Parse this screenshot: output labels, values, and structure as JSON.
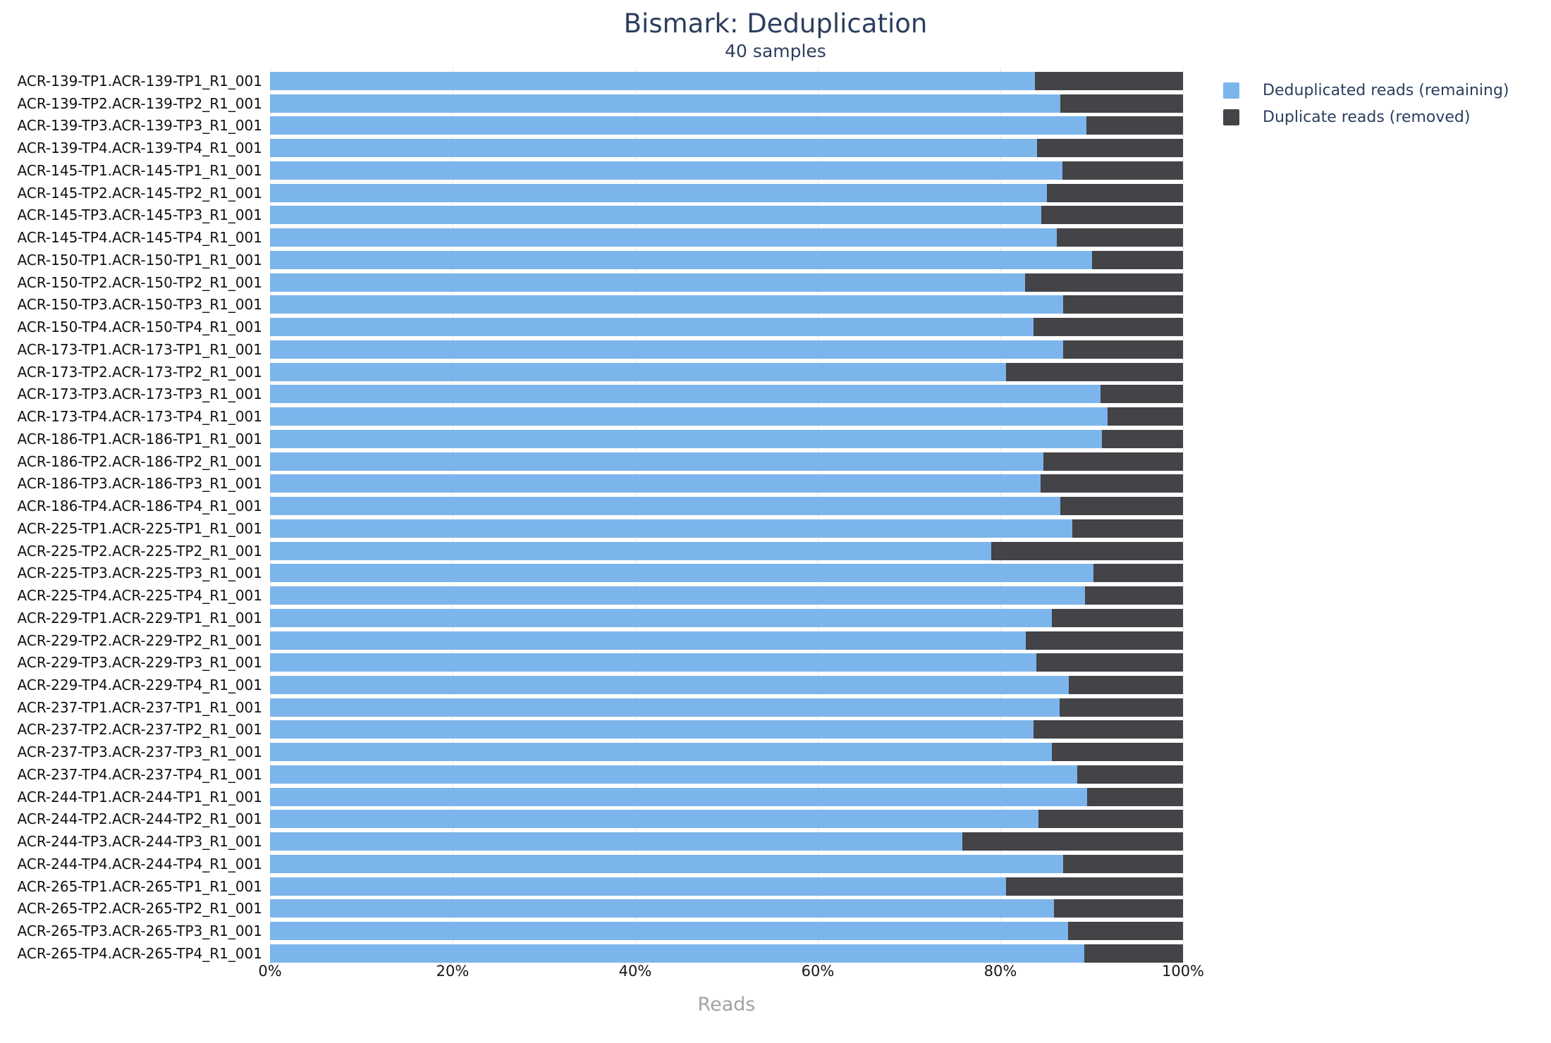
{
  "chart_data": {
    "type": "bar",
    "orientation": "horizontal",
    "stacked": true,
    "title": "Bismark: Deduplication",
    "subtitle": "40 samples",
    "xlabel": "Reads",
    "xlim": [
      0,
      100
    ],
    "x_tick_labels": [
      "0%",
      "20%",
      "40%",
      "60%",
      "80%",
      "100%"
    ],
    "x_tick_values": [
      0,
      20,
      40,
      60,
      80,
      100
    ],
    "grid": true,
    "legend_position": "top-right",
    "categories": [
      "ACR-139-TP1.ACR-139-TP1_R1_001",
      "ACR-139-TP2.ACR-139-TP2_R1_001",
      "ACR-139-TP3.ACR-139-TP3_R1_001",
      "ACR-139-TP4.ACR-139-TP4_R1_001",
      "ACR-145-TP1.ACR-145-TP1_R1_001",
      "ACR-145-TP2.ACR-145-TP2_R1_001",
      "ACR-145-TP3.ACR-145-TP3_R1_001",
      "ACR-145-TP4.ACR-145-TP4_R1_001",
      "ACR-150-TP1.ACR-150-TP1_R1_001",
      "ACR-150-TP2.ACR-150-TP2_R1_001",
      "ACR-150-TP3.ACR-150-TP3_R1_001",
      "ACR-150-TP4.ACR-150-TP4_R1_001",
      "ACR-173-TP1.ACR-173-TP1_R1_001",
      "ACR-173-TP2.ACR-173-TP2_R1_001",
      "ACR-173-TP3.ACR-173-TP3_R1_001",
      "ACR-173-TP4.ACR-173-TP4_R1_001",
      "ACR-186-TP1.ACR-186-TP1_R1_001",
      "ACR-186-TP2.ACR-186-TP2_R1_001",
      "ACR-186-TP3.ACR-186-TP3_R1_001",
      "ACR-186-TP4.ACR-186-TP4_R1_001",
      "ACR-225-TP1.ACR-225-TP1_R1_001",
      "ACR-225-TP2.ACR-225-TP2_R1_001",
      "ACR-225-TP3.ACR-225-TP3_R1_001",
      "ACR-225-TP4.ACR-225-TP4_R1_001",
      "ACR-229-TP1.ACR-229-TP1_R1_001",
      "ACR-229-TP2.ACR-229-TP2_R1_001",
      "ACR-229-TP3.ACR-229-TP3_R1_001",
      "ACR-229-TP4.ACR-229-TP4_R1_001",
      "ACR-237-TP1.ACR-237-TP1_R1_001",
      "ACR-237-TP2.ACR-237-TP2_R1_001",
      "ACR-237-TP3.ACR-237-TP3_R1_001",
      "ACR-237-TP4.ACR-237-TP4_R1_001",
      "ACR-244-TP1.ACR-244-TP1_R1_001",
      "ACR-244-TP2.ACR-244-TP2_R1_001",
      "ACR-244-TP3.ACR-244-TP3_R1_001",
      "ACR-244-TP4.ACR-244-TP4_R1_001",
      "ACR-265-TP1.ACR-265-TP1_R1_001",
      "ACR-265-TP2.ACR-265-TP2_R1_001",
      "ACR-265-TP3.ACR-265-TP3_R1_001",
      "ACR-265-TP4.ACR-265-TP4_R1_001"
    ],
    "series": [
      {
        "name": "Deduplicated reads (remaining)",
        "color": "#7cb5ec",
        "values": [
          83.8,
          86.6,
          89.4,
          84.0,
          86.8,
          85.1,
          84.5,
          86.2,
          90.0,
          82.7,
          86.9,
          83.6,
          86.9,
          80.6,
          91.0,
          91.7,
          91.1,
          84.7,
          84.4,
          86.6,
          87.9,
          79.0,
          90.2,
          89.3,
          85.6,
          82.8,
          83.9,
          87.5,
          86.5,
          83.6,
          85.6,
          88.4,
          89.5,
          84.2,
          75.8,
          86.9,
          80.6,
          85.9,
          87.4,
          89.2
        ]
      },
      {
        "name": "Duplicate reads (removed)",
        "color": "#434348",
        "values": [
          16.2,
          13.4,
          10.6,
          16.0,
          13.2,
          14.9,
          15.5,
          13.8,
          10.0,
          17.3,
          13.1,
          16.4,
          13.1,
          19.4,
          9.0,
          8.3,
          8.9,
          15.3,
          15.6,
          13.4,
          12.1,
          21.0,
          9.8,
          10.7,
          14.4,
          17.2,
          16.1,
          12.5,
          13.5,
          16.4,
          14.4,
          11.6,
          10.5,
          15.8,
          24.2,
          13.1,
          19.4,
          14.1,
          12.6,
          10.8
        ]
      }
    ],
    "colors": {
      "title_text": "#2c3e5e",
      "axis_tick_text": "#161616",
      "axis_title_text": "#a3a3a3",
      "sample_label_text": "#111111",
      "gridline": "#e9e9e9",
      "background": "#ffffff"
    }
  }
}
